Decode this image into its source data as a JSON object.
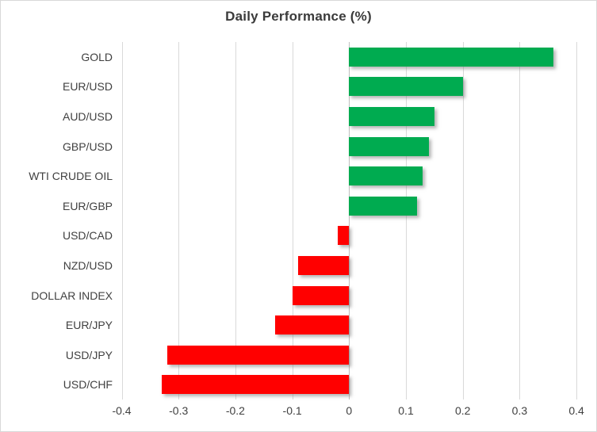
{
  "chart_data": {
    "type": "bar",
    "orientation": "horizontal",
    "title": "Daily Performance (%)",
    "xlabel": "",
    "ylabel": "",
    "categories": [
      "GOLD",
      "EUR/USD",
      "AUD/USD",
      "GBP/USD",
      "WTI CRUDE OIL",
      "EUR/GBP",
      "USD/CAD",
      "NZD/USD",
      "DOLLAR INDEX",
      "EUR/JPY",
      "USD/JPY",
      "USD/CHF"
    ],
    "values": [
      0.36,
      0.2,
      0.15,
      0.14,
      0.13,
      0.12,
      -0.02,
      -0.09,
      -0.1,
      -0.13,
      -0.32,
      -0.33
    ],
    "xlim": [
      -0.4063,
      0.4264
    ],
    "ticks": [
      -0.4,
      -0.3,
      -0.2,
      -0.1,
      0,
      0.1,
      0.2,
      0.3,
      0.4
    ],
    "tick_labels": [
      "-0.4",
      "-0.3",
      "-0.2",
      "-0.1",
      "0",
      "0.1",
      "0.2",
      "0.3",
      "0.4"
    ],
    "grid": "vertical-on",
    "legend": "none",
    "colors": {
      "positive": "#00ab50",
      "negative": "#ff0000",
      "gridline": "#d9d9d9",
      "zero_axis": "#bfbfbf",
      "text": "#404040",
      "title_text": "#3b3b3b",
      "canvas_border": "#d9d9d9",
      "background": "#ffffff"
    }
  }
}
